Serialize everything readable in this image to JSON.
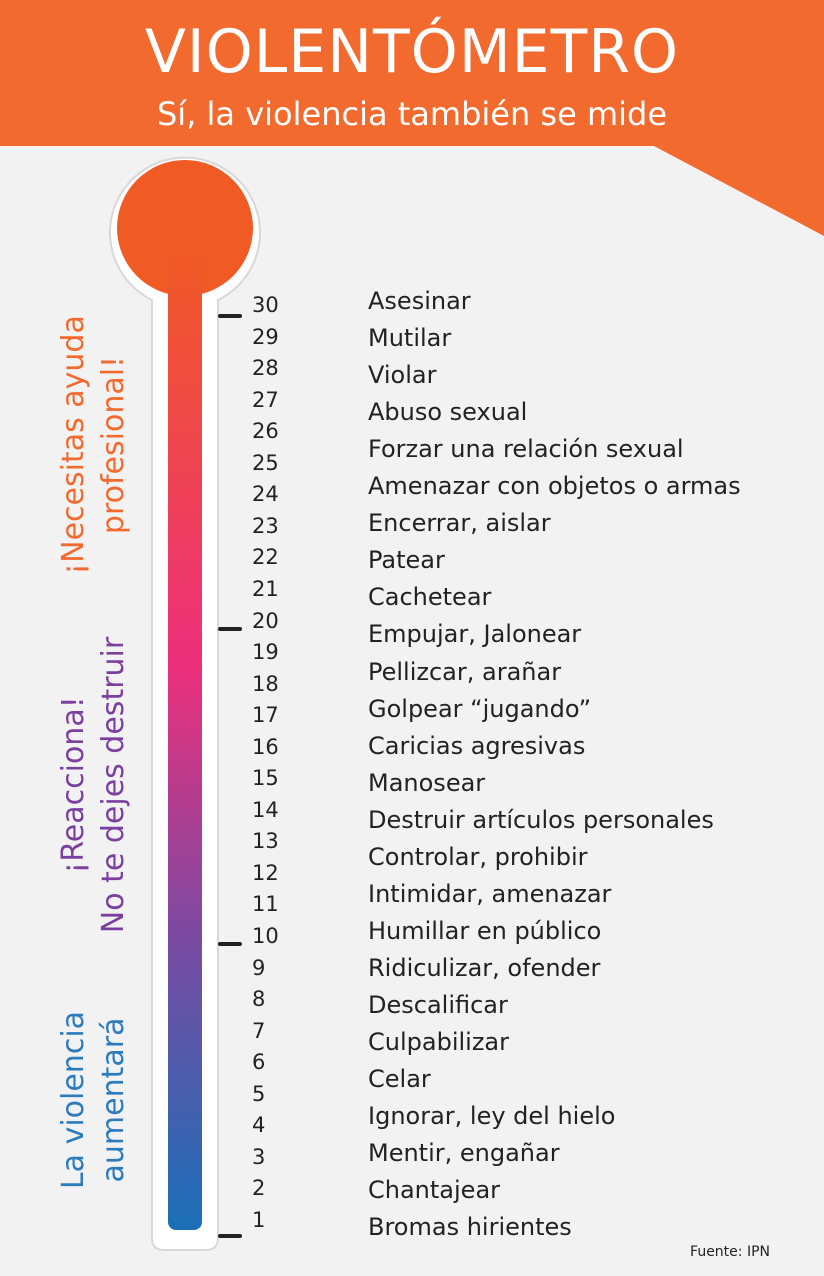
{
  "header": {
    "title": "VIOLENTÓMETRO",
    "subtitle": "Sí, la violencia también se mide"
  },
  "colors": {
    "header": "#f26a2e",
    "top": "#f05a24",
    "middle": "#ee2f7b",
    "purple": "#7b4aa2",
    "bottom": "#1a6fb7"
  },
  "zones": [
    {
      "line1": "¡Necesitas ayuda",
      "line2": "profesional!",
      "color": "#f26a2e"
    },
    {
      "line1": "¡Reacciona!",
      "line2": "No te dejes destruir",
      "color": "#7b3fa0"
    },
    {
      "line1": "La violencia",
      "line2": "aumentará",
      "color": "#2c7bbd"
    }
  ],
  "levels": [
    {
      "n": "30",
      "label": "Asesinar"
    },
    {
      "n": "29",
      "label": "Mutilar"
    },
    {
      "n": "28",
      "label": "Violar"
    },
    {
      "n": "27",
      "label": "Abuso sexual"
    },
    {
      "n": "26",
      "label": "Forzar una relación sexual"
    },
    {
      "n": "25",
      "label": "Amenazar con objetos o armas"
    },
    {
      "n": "24",
      "label": "Encerrar, aislar"
    },
    {
      "n": "23",
      "label": "Patear"
    },
    {
      "n": "22",
      "label": "Cachetear"
    },
    {
      "n": "21",
      "label": "Empujar, Jalonear"
    },
    {
      "n": "20",
      "label": "Pellizcar, arañar"
    },
    {
      "n": "19",
      "label": "Golpear “jugando”"
    },
    {
      "n": "18",
      "label": "Caricias agresivas"
    },
    {
      "n": "17",
      "label": "Manosear"
    },
    {
      "n": "16",
      "label": "Destruir artículos personales"
    },
    {
      "n": "15",
      "label": "Controlar, prohibir"
    },
    {
      "n": "14",
      "label": "Intimidar, amenazar"
    },
    {
      "n": "13",
      "label": "Humillar en público"
    },
    {
      "n": "12",
      "label": "Ridiculizar, ofender"
    },
    {
      "n": "11",
      "label": "Descalificar"
    },
    {
      "n": "10",
      "label": "Culpabilizar"
    },
    {
      "n": "9",
      "label": "Celar"
    },
    {
      "n": "8",
      "label": "Ignorar, ley del hielo"
    },
    {
      "n": "7",
      "label": "Mentir, engañar"
    },
    {
      "n": "6",
      "label": "Chantajear"
    },
    {
      "n": "5",
      "label": "Bromas hirientes"
    },
    {
      "n": "4",
      "label": ""
    },
    {
      "n": "3",
      "label": ""
    },
    {
      "n": "2",
      "label": ""
    },
    {
      "n": "1",
      "label": ""
    }
  ],
  "source": "Fuente: IPN"
}
